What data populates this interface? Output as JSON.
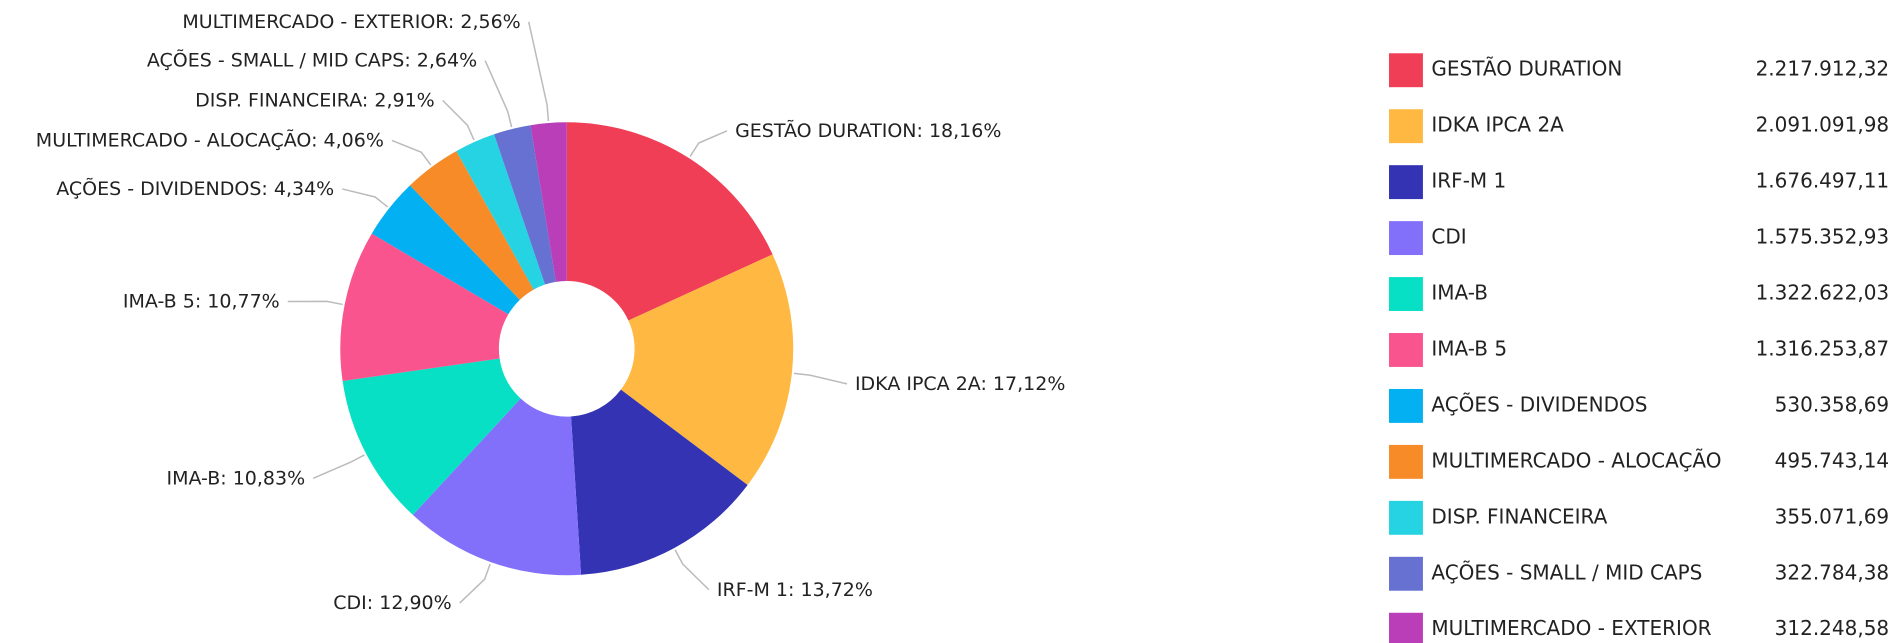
{
  "chart_data": {
    "type": "pie",
    "donut": true,
    "label_separator": ": ",
    "categories": [
      "GESTÃO DURATION",
      "IDKA IPCA 2A",
      "IRF-M 1",
      "CDI",
      "IMA-B",
      "IMA-B 5",
      "AÇÕES - DIVIDENDOS",
      "MULTIMERCADO - ALOCAÇÃO",
      "DISP. FINANCEIRA",
      "AÇÕES - SMALL / MID CAPS",
      "MULTIMERCADO - EXTERIOR"
    ],
    "values": [
      18.16,
      17.12,
      13.72,
      12.9,
      10.83,
      10.77,
      4.34,
      4.06,
      2.91,
      2.64,
      2.56
    ],
    "value_labels": [
      "18,16%",
      "17,12%",
      "13,72%",
      "12,90%",
      "10,83%",
      "10,77%",
      "4,34%",
      "4,06%",
      "2,91%",
      "2,64%",
      "2,56%"
    ],
    "amounts": [
      2217912.32,
      2091091.98,
      1676497.11,
      1575352.93,
      1322622.03,
      1316253.87,
      530358.69,
      495743.14,
      355071.69,
      322784.38,
      312248.58
    ],
    "amount_labels": [
      "2.217.912,32",
      "2.091.091,98",
      "1.676.497,11",
      "1.575.352,93",
      "1.322.622,03",
      "1.316.253,87",
      "530.358,69",
      "495.743,14",
      "355.071,69",
      "322.784,38",
      "312.248,58"
    ],
    "colors": [
      "#ef3e55",
      "#ffb942",
      "#3333b3",
      "#8270fb",
      "#07e0c4",
      "#f9548d",
      "#03b0f2",
      "#f68b28",
      "#25d3e2",
      "#6671d2",
      "#b93eb8"
    ]
  }
}
